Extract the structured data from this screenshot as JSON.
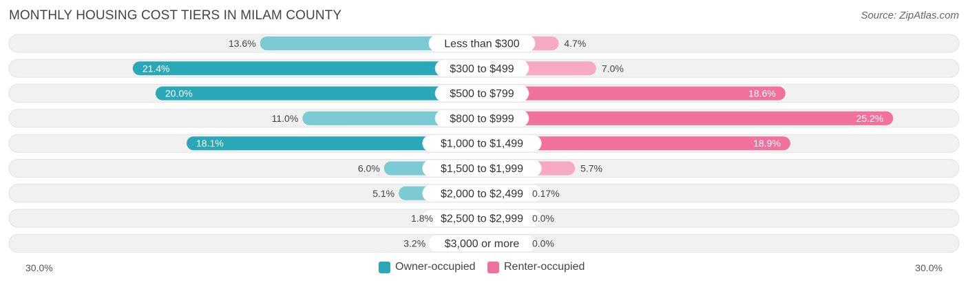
{
  "title": "MONTHLY HOUSING COST TIERS IN MILAM COUNTY",
  "source": "Source: ZipAtlas.com",
  "colors": {
    "owner_strong": "#2aa8b8",
    "owner_light": "#7ccad4",
    "renter_strong": "#f0719b",
    "renter_light": "#f6a9c3",
    "row_bg": "#f1f1f1"
  },
  "legend": {
    "owner": "Owner-occupied",
    "renter": "Renter-occupied"
  },
  "axis": {
    "left_label": "30.0%",
    "right_label": "30.0%"
  },
  "chart_data": {
    "type": "bar",
    "title": "MONTHLY HOUSING COST TIERS IN MILAM COUNTY",
    "orientation": "diverging-horizontal",
    "xlim": [
      -30,
      30
    ],
    "categories": [
      "Less than $300",
      "$300 to $499",
      "$500 to $799",
      "$800 to $999",
      "$1,000 to $1,499",
      "$1,500 to $1,999",
      "$2,000 to $2,499",
      "$2,500 to $2,999",
      "$3,000 or more"
    ],
    "series": [
      {
        "name": "Owner-occupied",
        "values": [
          13.6,
          21.4,
          20.0,
          11.0,
          18.1,
          6.0,
          5.1,
          1.8,
          3.2
        ],
        "labels": [
          "13.6%",
          "21.4%",
          "20.0%",
          "11.0%",
          "18.1%",
          "6.0%",
          "5.1%",
          "1.8%",
          "3.2%"
        ]
      },
      {
        "name": "Renter-occupied",
        "values": [
          4.7,
          7.0,
          18.6,
          25.2,
          18.9,
          5.7,
          0.17,
          0.0,
          0.0
        ],
        "labels": [
          "4.7%",
          "7.0%",
          "18.6%",
          "25.2%",
          "18.9%",
          "5.7%",
          "0.17%",
          "0.0%",
          "0.0%"
        ]
      }
    ],
    "legend_position": "bottom-center"
  }
}
